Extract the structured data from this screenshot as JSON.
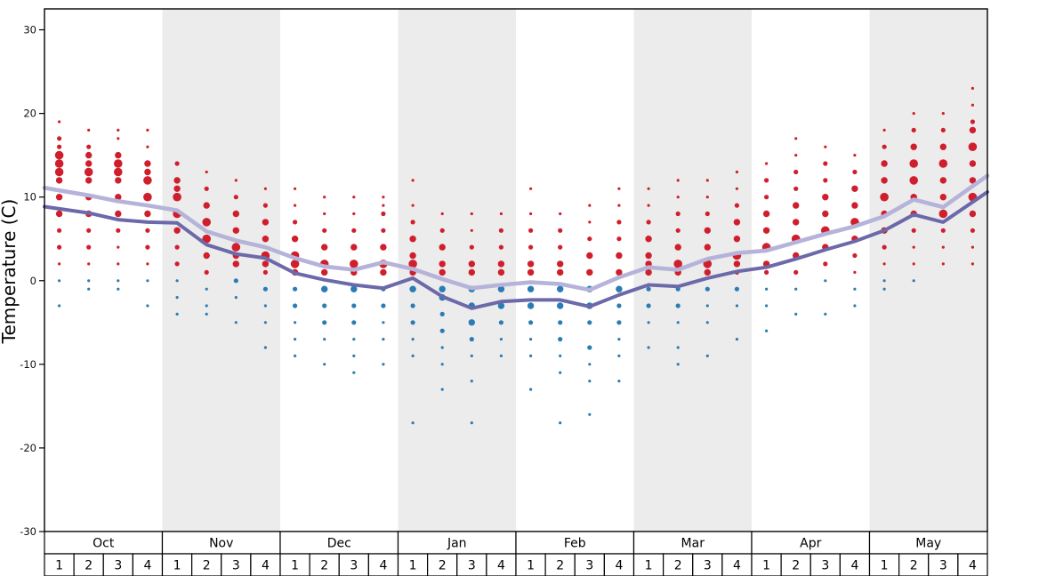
{
  "chart_data": {
    "type": "scatter",
    "ylabel": "Temperature (C)",
    "yticks": [
      30,
      20,
      10,
      0,
      -10,
      -20,
      -30
    ],
    "ylim": [
      -30,
      32.5
    ],
    "months": [
      "Oct",
      "Nov",
      "Dec",
      "Jan",
      "Feb",
      "Mar",
      "Apr",
      "May"
    ],
    "gray_band_months": [
      "Nov",
      "Jan",
      "Mar",
      "May"
    ],
    "week_labels": [
      "1",
      "2",
      "3",
      "4"
    ],
    "legend_position": "none",
    "grid": false,
    "colors": {
      "above_freezing_dot": "#d01f2c",
      "below_freezing_dot": "#2a7cb5",
      "upper_line": "#b5b3d9",
      "lower_line": "#6b69a9",
      "month_band": "#ececec",
      "axis": "#000000"
    },
    "series": [
      {
        "name": "upper-average-line",
        "color": "#b5b3d9",
        "values": [
          10.8,
          10.2,
          9.5,
          9.0,
          8.4,
          5.9,
          4.8,
          4.0,
          2.7,
          1.7,
          1.3,
          2.2,
          1.4,
          0.2,
          -0.9,
          -0.5,
          -0.2,
          -0.4,
          -1.1,
          0.4,
          1.6,
          1.3,
          2.6,
          3.3,
          3.6,
          4.6,
          5.6,
          6.5,
          7.7,
          9.7,
          8.8,
          11.3
        ]
      },
      {
        "name": "lower-average-line",
        "color": "#6b69a9",
        "values": [
          8.6,
          8.1,
          7.3,
          7.0,
          6.9,
          4.3,
          3.2,
          2.7,
          0.9,
          0.1,
          -0.5,
          -0.9,
          0.3,
          -1.9,
          -3.3,
          -2.5,
          -2.3,
          -2.3,
          -3.1,
          -1.7,
          -0.5,
          -0.7,
          0.3,
          1.1,
          1.6,
          2.6,
          3.7,
          4.7,
          6.0,
          7.9,
          7.0,
          9.4
        ]
      }
    ],
    "dots_format": "[temperature_C, frequency_size_class_1_to_4]; color = red if t>0 else blue",
    "dots": [
      [
        [
          19,
          1
        ],
        [
          17,
          2
        ],
        [
          16,
          2
        ],
        [
          15,
          4
        ],
        [
          14,
          4
        ],
        [
          13,
          4
        ],
        [
          12,
          3
        ],
        [
          10,
          3
        ],
        [
          8,
          3
        ],
        [
          6,
          2
        ],
        [
          4,
          2
        ],
        [
          2,
          1
        ],
        [
          0,
          1
        ],
        [
          -3,
          1
        ]
      ],
      [
        [
          18,
          1
        ],
        [
          16,
          2
        ],
        [
          15,
          3
        ],
        [
          14,
          3
        ],
        [
          13,
          4
        ],
        [
          12,
          3
        ],
        [
          10,
          3
        ],
        [
          8,
          3
        ],
        [
          6,
          2
        ],
        [
          4,
          2
        ],
        [
          2,
          1
        ],
        [
          0,
          1
        ],
        [
          -1,
          1
        ]
      ],
      [
        [
          18,
          1
        ],
        [
          17,
          1
        ],
        [
          15,
          3
        ],
        [
          14,
          4
        ],
        [
          13,
          4
        ],
        [
          12,
          3
        ],
        [
          10,
          3
        ],
        [
          8,
          3
        ],
        [
          6,
          2
        ],
        [
          4,
          1
        ],
        [
          2,
          1
        ],
        [
          0,
          1
        ],
        [
          -1,
          1
        ]
      ],
      [
        [
          18,
          1
        ],
        [
          16,
          1
        ],
        [
          14,
          3
        ],
        [
          13,
          3
        ],
        [
          12,
          4
        ],
        [
          10,
          4
        ],
        [
          8,
          3
        ],
        [
          6,
          2
        ],
        [
          4,
          2
        ],
        [
          2,
          1
        ],
        [
          0,
          1
        ],
        [
          -3,
          1
        ]
      ],
      [
        [
          14,
          2
        ],
        [
          12,
          3
        ],
        [
          11,
          3
        ],
        [
          10,
          4
        ],
        [
          8,
          4
        ],
        [
          6,
          3
        ],
        [
          4,
          2
        ],
        [
          2,
          2
        ],
        [
          0,
          1
        ],
        [
          -2,
          1
        ],
        [
          -4,
          1
        ]
      ],
      [
        [
          13,
          1
        ],
        [
          11,
          2
        ],
        [
          9,
          3
        ],
        [
          7,
          4
        ],
        [
          5,
          4
        ],
        [
          3,
          3
        ],
        [
          1,
          2
        ],
        [
          -1,
          1
        ],
        [
          -3,
          1
        ],
        [
          -4,
          1
        ]
      ],
      [
        [
          12,
          1
        ],
        [
          10,
          2
        ],
        [
          8,
          3
        ],
        [
          6,
          3
        ],
        [
          4,
          4
        ],
        [
          3,
          3
        ],
        [
          2,
          3
        ],
        [
          0,
          2
        ],
        [
          -2,
          1
        ],
        [
          -5,
          1
        ]
      ],
      [
        [
          11,
          1
        ],
        [
          9,
          2
        ],
        [
          7,
          3
        ],
        [
          5,
          3
        ],
        [
          3,
          4
        ],
        [
          2,
          3
        ],
        [
          1,
          2
        ],
        [
          -1,
          2
        ],
        [
          -3,
          1
        ],
        [
          -5,
          1
        ],
        [
          -8,
          1
        ]
      ],
      [
        [
          11,
          1
        ],
        [
          9,
          1
        ],
        [
          7,
          2
        ],
        [
          5,
          3
        ],
        [
          3,
          4
        ],
        [
          2,
          4
        ],
        [
          1,
          3
        ],
        [
          -1,
          2
        ],
        [
          -3,
          2
        ],
        [
          -5,
          1
        ],
        [
          -7,
          1
        ],
        [
          -9,
          1
        ]
      ],
      [
        [
          10,
          1
        ],
        [
          8,
          1
        ],
        [
          6,
          2
        ],
        [
          4,
          3
        ],
        [
          2,
          4
        ],
        [
          1,
          3
        ],
        [
          -1,
          3
        ],
        [
          -3,
          2
        ],
        [
          -5,
          2
        ],
        [
          -7,
          1
        ],
        [
          -10,
          1
        ]
      ],
      [
        [
          10,
          1
        ],
        [
          8,
          1
        ],
        [
          6,
          2
        ],
        [
          4,
          3
        ],
        [
          2,
          4
        ],
        [
          1,
          3
        ],
        [
          -1,
          3
        ],
        [
          -3,
          2
        ],
        [
          -5,
          2
        ],
        [
          -7,
          1
        ],
        [
          -9,
          1
        ],
        [
          -11,
          1
        ]
      ],
      [
        [
          10,
          1
        ],
        [
          9,
          1
        ],
        [
          8,
          2
        ],
        [
          6,
          2
        ],
        [
          4,
          3
        ],
        [
          2,
          4
        ],
        [
          1,
          3
        ],
        [
          -1,
          2
        ],
        [
          -3,
          2
        ],
        [
          -5,
          1
        ],
        [
          -7,
          1
        ],
        [
          -10,
          1
        ]
      ],
      [
        [
          12,
          1
        ],
        [
          9,
          1
        ],
        [
          7,
          2
        ],
        [
          5,
          3
        ],
        [
          3,
          3
        ],
        [
          2,
          4
        ],
        [
          1,
          3
        ],
        [
          -1,
          3
        ],
        [
          -3,
          2
        ],
        [
          -5,
          2
        ],
        [
          -7,
          1
        ],
        [
          -9,
          1
        ],
        [
          -17,
          1
        ]
      ],
      [
        [
          8,
          1
        ],
        [
          6,
          2
        ],
        [
          4,
          3
        ],
        [
          2,
          3
        ],
        [
          1,
          3
        ],
        [
          -1,
          3
        ],
        [
          -2,
          3
        ],
        [
          -4,
          2
        ],
        [
          -6,
          2
        ],
        [
          -8,
          1
        ],
        [
          -10,
          1
        ],
        [
          -13,
          1
        ]
      ],
      [
        [
          8,
          1
        ],
        [
          6,
          1
        ],
        [
          4,
          2
        ],
        [
          2,
          3
        ],
        [
          1,
          3
        ],
        [
          -1,
          3
        ],
        [
          -3,
          3
        ],
        [
          -5,
          3
        ],
        [
          -7,
          2
        ],
        [
          -9,
          1
        ],
        [
          -12,
          1
        ],
        [
          -17,
          1
        ]
      ],
      [
        [
          8,
          1
        ],
        [
          6,
          2
        ],
        [
          4,
          2
        ],
        [
          2,
          3
        ],
        [
          1,
          3
        ],
        [
          -1,
          3
        ],
        [
          -3,
          3
        ],
        [
          -5,
          2
        ],
        [
          -7,
          1
        ],
        [
          -9,
          1
        ]
      ],
      [
        [
          11,
          1
        ],
        [
          8,
          1
        ],
        [
          6,
          2
        ],
        [
          4,
          2
        ],
        [
          2,
          3
        ],
        [
          1,
          3
        ],
        [
          -1,
          3
        ],
        [
          -3,
          3
        ],
        [
          -5,
          2
        ],
        [
          -7,
          1
        ],
        [
          -9,
          1
        ],
        [
          -13,
          1
        ]
      ],
      [
        [
          8,
          1
        ],
        [
          6,
          2
        ],
        [
          4,
          2
        ],
        [
          2,
          3
        ],
        [
          1,
          3
        ],
        [
          -1,
          3
        ],
        [
          -3,
          3
        ],
        [
          -5,
          2
        ],
        [
          -7,
          2
        ],
        [
          -9,
          1
        ],
        [
          -11,
          1
        ],
        [
          -17,
          1
        ]
      ],
      [
        [
          9,
          1
        ],
        [
          7,
          1
        ],
        [
          5,
          2
        ],
        [
          3,
          3
        ],
        [
          1,
          3
        ],
        [
          -1,
          3
        ],
        [
          -3,
          3
        ],
        [
          -5,
          2
        ],
        [
          -8,
          2
        ],
        [
          -10,
          1
        ],
        [
          -12,
          1
        ],
        [
          -16,
          1
        ]
      ],
      [
        [
          11,
          1
        ],
        [
          9,
          1
        ],
        [
          7,
          2
        ],
        [
          5,
          2
        ],
        [
          3,
          3
        ],
        [
          1,
          3
        ],
        [
          -1,
          3
        ],
        [
          -3,
          2
        ],
        [
          -5,
          2
        ],
        [
          -7,
          1
        ],
        [
          -9,
          1
        ],
        [
          -12,
          1
        ]
      ],
      [
        [
          11,
          1
        ],
        [
          9,
          1
        ],
        [
          7,
          2
        ],
        [
          5,
          3
        ],
        [
          3,
          3
        ],
        [
          2,
          3
        ],
        [
          1,
          3
        ],
        [
          -1,
          2
        ],
        [
          -3,
          2
        ],
        [
          -5,
          1
        ],
        [
          -8,
          1
        ]
      ],
      [
        [
          12,
          1
        ],
        [
          10,
          1
        ],
        [
          8,
          2
        ],
        [
          6,
          2
        ],
        [
          4,
          3
        ],
        [
          2,
          4
        ],
        [
          1,
          3
        ],
        [
          -1,
          2
        ],
        [
          -3,
          2
        ],
        [
          -5,
          1
        ],
        [
          -8,
          1
        ],
        [
          -10,
          1
        ]
      ],
      [
        [
          12,
          1
        ],
        [
          10,
          1
        ],
        [
          8,
          2
        ],
        [
          6,
          3
        ],
        [
          4,
          3
        ],
        [
          2,
          4
        ],
        [
          1,
          3
        ],
        [
          -1,
          2
        ],
        [
          -3,
          1
        ],
        [
          -5,
          1
        ],
        [
          -9,
          1
        ]
      ],
      [
        [
          13,
          1
        ],
        [
          11,
          1
        ],
        [
          9,
          2
        ],
        [
          7,
          3
        ],
        [
          5,
          3
        ],
        [
          3,
          4
        ],
        [
          2,
          3
        ],
        [
          1,
          2
        ],
        [
          -1,
          2
        ],
        [
          -3,
          1
        ],
        [
          -7,
          1
        ]
      ],
      [
        [
          14,
          1
        ],
        [
          12,
          2
        ],
        [
          10,
          2
        ],
        [
          8,
          3
        ],
        [
          6,
          3
        ],
        [
          4,
          4
        ],
        [
          2,
          3
        ],
        [
          1,
          2
        ],
        [
          -1,
          1
        ],
        [
          -3,
          1
        ],
        [
          -6,
          1
        ]
      ],
      [
        [
          17,
          1
        ],
        [
          15,
          1
        ],
        [
          13,
          2
        ],
        [
          11,
          2
        ],
        [
          9,
          3
        ],
        [
          7,
          3
        ],
        [
          5,
          4
        ],
        [
          3,
          3
        ],
        [
          1,
          2
        ],
        [
          -1,
          1
        ],
        [
          -4,
          1
        ]
      ],
      [
        [
          16,
          1
        ],
        [
          14,
          2
        ],
        [
          12,
          2
        ],
        [
          10,
          3
        ],
        [
          8,
          3
        ],
        [
          6,
          4
        ],
        [
          4,
          3
        ],
        [
          2,
          2
        ],
        [
          0,
          1
        ],
        [
          -4,
          1
        ]
      ],
      [
        [
          15,
          1
        ],
        [
          13,
          2
        ],
        [
          11,
          3
        ],
        [
          9,
          3
        ],
        [
          7,
          4
        ],
        [
          5,
          3
        ],
        [
          3,
          2
        ],
        [
          1,
          1
        ],
        [
          -1,
          1
        ],
        [
          -3,
          1
        ]
      ],
      [
        [
          18,
          1
        ],
        [
          16,
          2
        ],
        [
          14,
          3
        ],
        [
          12,
          3
        ],
        [
          10,
          4
        ],
        [
          8,
          3
        ],
        [
          6,
          3
        ],
        [
          4,
          2
        ],
        [
          2,
          1
        ],
        [
          0,
          1
        ],
        [
          -1,
          1
        ]
      ],
      [
        [
          20,
          1
        ],
        [
          18,
          2
        ],
        [
          16,
          3
        ],
        [
          14,
          4
        ],
        [
          12,
          4
        ],
        [
          10,
          3
        ],
        [
          8,
          3
        ],
        [
          6,
          2
        ],
        [
          4,
          1
        ],
        [
          2,
          1
        ],
        [
          0,
          1
        ]
      ],
      [
        [
          20,
          1
        ],
        [
          18,
          2
        ],
        [
          16,
          3
        ],
        [
          14,
          4
        ],
        [
          12,
          3
        ],
        [
          10,
          3
        ],
        [
          8,
          4
        ],
        [
          6,
          2
        ],
        [
          4,
          1
        ],
        [
          2,
          1
        ]
      ],
      [
        [
          23,
          1
        ],
        [
          21,
          1
        ],
        [
          19,
          2
        ],
        [
          18,
          3
        ],
        [
          16,
          4
        ],
        [
          14,
          3
        ],
        [
          12,
          3
        ],
        [
          10,
          4
        ],
        [
          8,
          3
        ],
        [
          6,
          2
        ],
        [
          4,
          1
        ],
        [
          2,
          1
        ]
      ]
    ]
  }
}
